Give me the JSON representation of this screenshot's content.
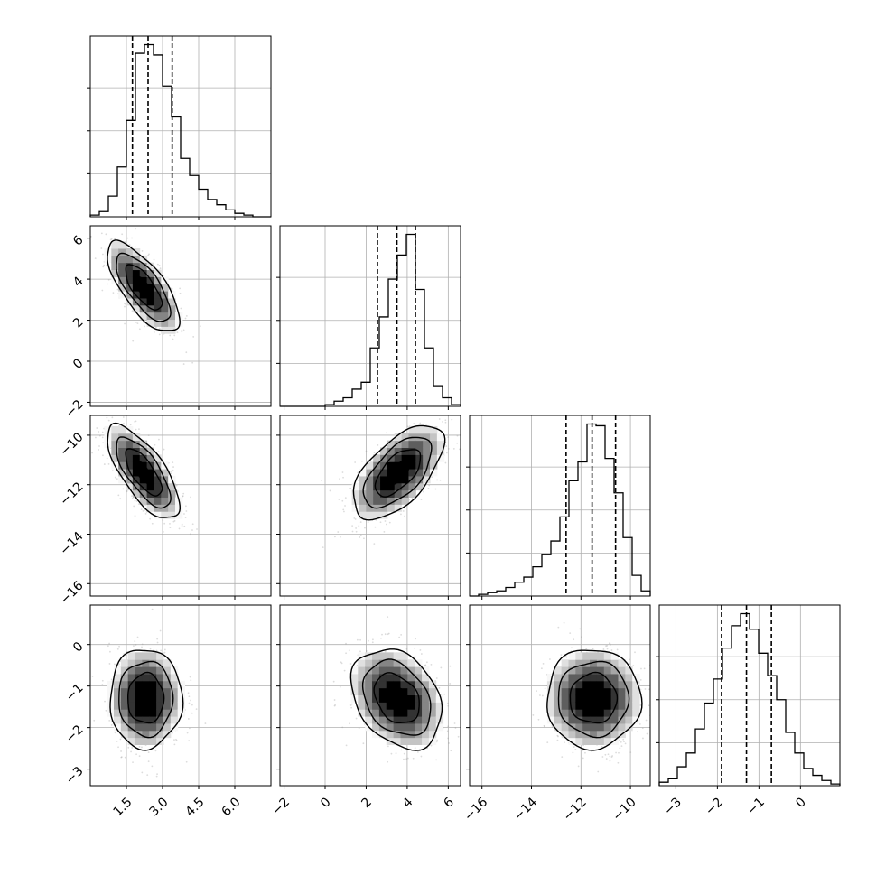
{
  "chart_data": {
    "type": "corner",
    "grid": true,
    "parameters": [
      {
        "ticks": [
          1.5,
          3.0,
          4.5,
          6.0
        ],
        "tick_labels": [
          "1.5",
          "3.0",
          "4.5",
          "6.0"
        ],
        "range": [
          0.0,
          7.5
        ],
        "quantiles": [
          1.75,
          2.4,
          3.4
        ],
        "hist_edges": [
          0.0,
          0.375,
          0.75,
          1.125,
          1.5,
          1.875,
          2.25,
          2.625,
          3.0,
          3.375,
          3.75,
          4.125,
          4.5,
          4.875,
          5.25,
          5.625,
          6.0,
          6.375,
          6.75,
          7.125,
          7.5
        ],
        "hist_counts": [
          1,
          3,
          12,
          29,
          56,
          95,
          100,
          94,
          76,
          58,
          34,
          24,
          16,
          10,
          7,
          4,
          2,
          1,
          0,
          0
        ]
      },
      {
        "ticks": [
          -2,
          0,
          2,
          4,
          6
        ],
        "tick_labels": [
          "−2",
          "0",
          "2",
          "4",
          "6"
        ],
        "range": [
          -2.2,
          6.6
        ],
        "quantiles": [
          2.55,
          3.5,
          4.4
        ],
        "hist_edges": [
          -2.2,
          -1.76,
          -1.32,
          -0.88,
          -0.44,
          0.0,
          0.44,
          0.88,
          1.32,
          1.76,
          2.2,
          2.64,
          3.08,
          3.52,
          3.96,
          4.4,
          4.84,
          5.28,
          5.72,
          6.16,
          6.6
        ],
        "hist_counts": [
          0,
          0,
          0,
          0,
          0,
          1,
          3,
          5,
          10,
          14,
          34,
          52,
          74,
          88,
          100,
          68,
          34,
          12,
          5,
          1
        ]
      },
      {
        "ticks": [
          -16,
          -14,
          -12,
          -10
        ],
        "tick_labels": [
          "−16",
          "−14",
          "−12",
          "−10"
        ],
        "range": [
          -16.5,
          -9.2
        ],
        "quantiles": [
          -12.6,
          -11.55,
          -10.6
        ],
        "hist_edges": [
          -16.5,
          -16.135,
          -15.77,
          -15.405,
          -15.04,
          -14.675,
          -14.31,
          -13.945,
          -13.58,
          -13.215,
          -12.85,
          -12.485,
          -12.12,
          -11.755,
          -11.39,
          -11.025,
          -10.66,
          -10.295,
          -9.93,
          -9.565,
          -9.2
        ],
        "hist_counts": [
          0,
          1,
          2,
          3,
          5,
          8,
          11,
          17,
          24,
          32,
          46,
          67,
          78,
          100,
          99,
          80,
          60,
          34,
          12,
          3
        ]
      },
      {
        "ticks": [
          -3,
          -2,
          -1,
          0
        ],
        "tick_labels": [
          "−3",
          "−2",
          "−1",
          "0"
        ],
        "range": [
          -3.4,
          0.95
        ],
        "quantiles": [
          -1.9,
          -1.3,
          -0.7
        ],
        "hist_edges": [
          -3.4,
          -3.1825,
          -2.965,
          -2.7475,
          -2.53,
          -2.3125,
          -2.095,
          -1.8775,
          -1.66,
          -1.4425,
          -1.225,
          -1.0075,
          -0.79,
          -0.5725,
          -0.355,
          -0.1375,
          0.08,
          0.2975,
          0.515,
          0.7325,
          0.95
        ],
        "hist_counts": [
          2,
          4,
          11,
          19,
          33,
          48,
          62,
          80,
          93,
          100,
          91,
          77,
          64,
          50,
          31,
          19,
          10,
          6,
          3,
          1
        ]
      }
    ],
    "pairs": [
      {
        "row": 1,
        "col": 0,
        "mean": [
          2.2,
          3.6
        ],
        "sd": [
          0.75,
          1.1
        ],
        "corr": -0.72
      },
      {
        "row": 2,
        "col": 0,
        "mean": [
          2.2,
          -11.5
        ],
        "sd": [
          0.75,
          0.95
        ],
        "corr": -0.72
      },
      {
        "row": 2,
        "col": 1,
        "mean": [
          3.55,
          -11.5
        ],
        "sd": [
          1.1,
          0.95
        ],
        "corr": 0.6
      },
      {
        "row": 3,
        "col": 0,
        "mean": [
          2.3,
          -1.3
        ],
        "sd": [
          0.75,
          0.6
        ],
        "corr": 0.0
      },
      {
        "row": 3,
        "col": 1,
        "mean": [
          3.5,
          -1.3
        ],
        "sd": [
          1.1,
          0.6
        ],
        "corr": -0.3
      },
      {
        "row": 3,
        "col": 2,
        "mean": [
          -11.5,
          -1.3
        ],
        "sd": [
          0.95,
          0.6
        ],
        "corr": 0.0
      }
    ],
    "contour_levels_sigma": [
      0.5,
      1.0,
      1.5,
      2.0
    ]
  }
}
